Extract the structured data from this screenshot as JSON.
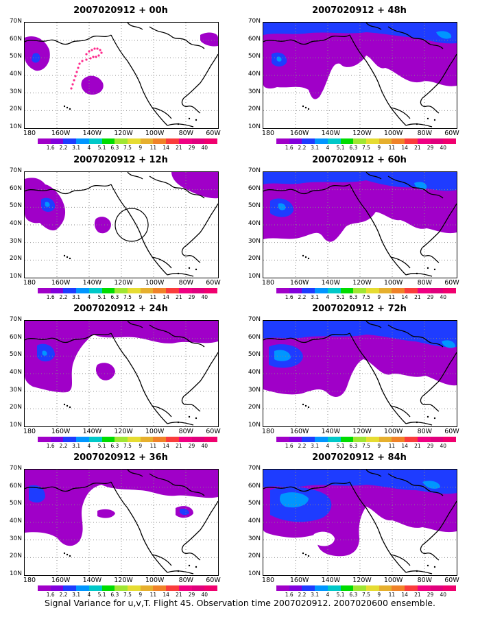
{
  "panels": [
    {
      "title": "2007020912 + 00h"
    },
    {
      "title": "2007020912 + 48h"
    },
    {
      "title": "2007020912 + 12h"
    },
    {
      "title": "2007020912 + 60h"
    },
    {
      "title": "2007020912 + 24h"
    },
    {
      "title": "2007020912 + 72h"
    },
    {
      "title": "2007020912 + 36h"
    },
    {
      "title": "2007020912 + 84h"
    }
  ],
  "lat_labels": [
    "70N",
    "60N",
    "50N",
    "40N",
    "30N",
    "20N",
    "10N"
  ],
  "lon_labels": [
    "180",
    "160W",
    "140W",
    "120W",
    "100W",
    "80W",
    "60W"
  ],
  "colorbar": {
    "labels": [
      "1.6",
      "2.2",
      "3.1",
      "4",
      "5.1",
      "6.3",
      "7.5",
      "9",
      "11",
      "14",
      "21",
      "29",
      "40"
    ],
    "colors": [
      "#a000c8",
      "#8200dc",
      "#1e3cff",
      "#0096ff",
      "#00c8c8",
      "#00dc00",
      "#a0e632",
      "#e6dc32",
      "#e6af2d",
      "#f08228",
      "#fa3c3c",
      "#f00082",
      "#e0007d",
      "#f0006e"
    ]
  },
  "footer": "Signal Variance for u,v,T. Flight 45. Observation time 2007020912. 2007020600 ensemble."
}
